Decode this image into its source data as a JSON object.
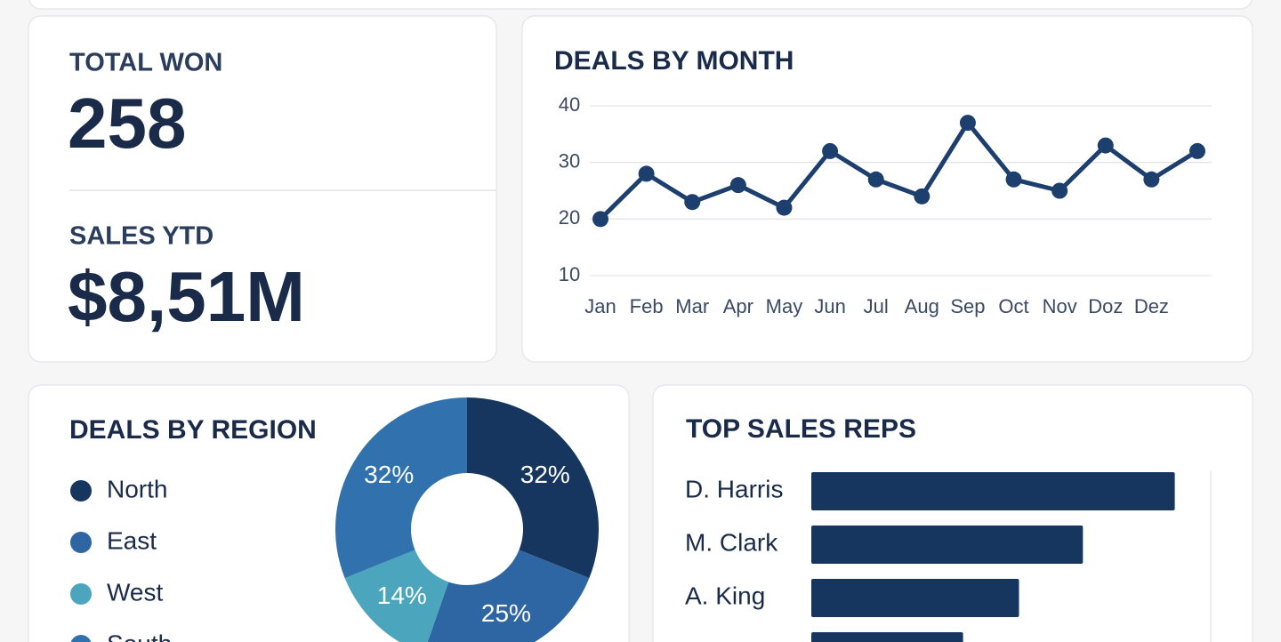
{
  "kpis": [
    {
      "label": "TOTAL WON",
      "value": "258"
    },
    {
      "label": "SALES YTD",
      "value": "$8,51M"
    }
  ],
  "chart_data": [
    {
      "type": "line",
      "title": "DEALS BY MONTH",
      "categories": [
        "Jan",
        "Feb",
        "Mar",
        "Apr",
        "May",
        "Jun",
        "Jul",
        "Aug",
        "Sep",
        "Oct",
        "Nov",
        "Doz",
        "Dez",
        null
      ],
      "values": [
        20,
        28,
        23,
        26,
        22,
        32,
        27,
        24,
        37,
        27,
        25,
        33,
        27,
        32
      ],
      "color": "#1d3f6e",
      "ylim": [
        10,
        40
      ],
      "yticks": [
        10,
        20,
        30,
        40
      ],
      "grid": true
    },
    {
      "type": "donut",
      "title": "DEALS BY REGION",
      "categories": [
        "North",
        "East",
        "West",
        "South"
      ],
      "values": [
        32,
        25,
        14,
        32
      ],
      "value_labels": [
        "32%",
        "25%",
        "14%",
        "32%"
      ],
      "colors": [
        "#17365f",
        "#2e65a3",
        "#4aa5bd",
        "#3172ae"
      ]
    },
    {
      "type": "bar",
      "orientation": "horizontal",
      "title": "TOP SALES REPS",
      "categories": [
        "D. Harris",
        "M. Clark",
        "A. King",
        null
      ],
      "values": [
        91,
        68,
        52,
        38
      ],
      "color": "#17365f",
      "xlim": [
        0,
        100
      ]
    }
  ]
}
